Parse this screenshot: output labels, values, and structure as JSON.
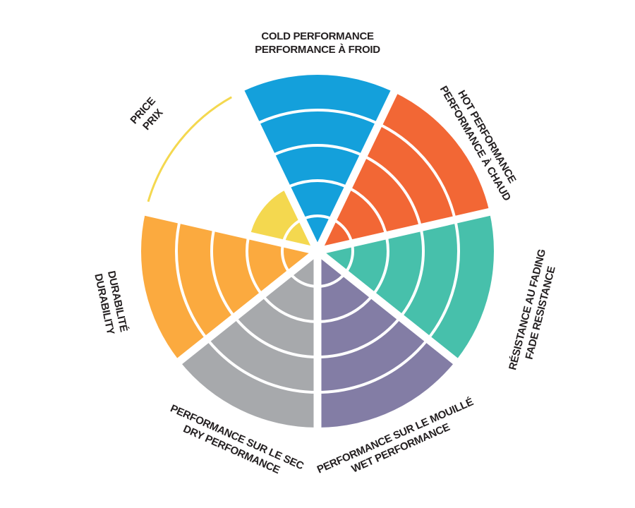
{
  "chart_data": {
    "type": "polar-area",
    "scale_max": 5,
    "rings": 5,
    "grid": true,
    "categories": [
      {
        "lines": [
          "COLD PERFORMANCE",
          "PERFORMANCE À FROID"
        ],
        "value": 5,
        "color": "#14a0db"
      },
      {
        "lines": [
          "HOT PERFORMANCE",
          "PERFORMANCE À CHAUD"
        ],
        "value": 5,
        "color": "#f26735"
      },
      {
        "lines": [
          "RÉSISTANCE AU FADING",
          "FADE RESISTANCE"
        ],
        "value": 5,
        "color": "#47c0ab"
      },
      {
        "lines": [
          "PERFORMANCE SUR LE MOUILLÉ",
          "WET PERFORMANCE"
        ],
        "value": 5,
        "color": "#837da5"
      },
      {
        "lines": [
          "PERFORMANCE SUR LE SEC",
          "DRY PERFORMANCE"
        ],
        "value": 5,
        "color": "#a7a9ac"
      },
      {
        "lines": [
          "DURABILITÉ",
          "DURABILITY"
        ],
        "value": 5,
        "color": "#fbaa3f"
      },
      {
        "lines": [
          "PRICE",
          "PRIX"
        ],
        "value": 2,
        "color": "#f4d84f"
      }
    ]
  }
}
